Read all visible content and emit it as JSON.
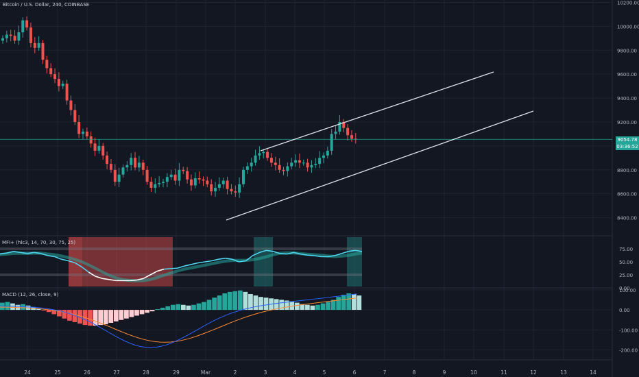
{
  "header": {
    "title": "Bitcoin / U.S. Dollar, 240, COINBASE"
  },
  "price_tag": {
    "price": "9054.78",
    "countdown": "03:36:52"
  },
  "mfi_label": "MFI+ (hlc3, 14, 70, 30, 75, 25)",
  "macd_label": "MACD (12, 26, close, 9)",
  "colors": {
    "background": "#131722",
    "up": "#26a69a",
    "down": "#ef5350",
    "grid": "#1e2330",
    "mfi_line": "#4fd6f0",
    "macd_line": "#2962ff",
    "signal_line": "#ff8a33"
  },
  "chart_data": [
    {
      "type": "candlestick",
      "title": "Bitcoin / U.S. Dollar, 240, COINBASE",
      "y_ticks": [
        "10200.00",
        "10000.00",
        "9800.00",
        "9600.00",
        "9400.00",
        "9200.00",
        "9000.00",
        "8800.00",
        "8600.00",
        "8400.00"
      ],
      "ylim": [
        8260,
        10220
      ],
      "x_ticks": [
        "24",
        "25",
        "26",
        "27",
        "28",
        "29",
        "Mar",
        "2",
        "3",
        "4",
        "5",
        "6",
        "7",
        "8",
        "9",
        "10",
        "11",
        "12",
        "13",
        "14"
      ],
      "current_price": 9054.78,
      "close_approx": [
        9900,
        9930,
        9920,
        9880,
        9950,
        10050,
        9990,
        9860,
        9820,
        9860,
        9720,
        9650,
        9600,
        9560,
        9500,
        9520,
        9380,
        9300,
        9200,
        9100,
        9120,
        9080,
        9020,
        8960,
        9000,
        8920,
        8850,
        8800,
        8700,
        8760,
        8820,
        8840,
        8900,
        8820,
        8860,
        8800,
        8700,
        8650,
        8680,
        8690,
        8700,
        8740,
        8760,
        8710,
        8800,
        8790,
        8720,
        8670,
        8730,
        8720,
        8710,
        8680,
        8620,
        8650,
        8680,
        8710,
        8640,
        8620,
        8610,
        8680,
        8800,
        8830,
        8860,
        8920,
        8940,
        8950,
        8900,
        8860,
        8840,
        8800,
        8790,
        8830,
        8860,
        8880,
        8860,
        8860,
        8820,
        8840,
        8850,
        8900,
        8920,
        8960,
        9100,
        9120,
        9200,
        9150,
        9090,
        9060,
        9055
      ]
    },
    {
      "type": "line",
      "name": "MFI+ (hlc3, 14, 70, 30, 75, 25)",
      "y_ticks": [
        "75.00",
        "50.00",
        "25.00",
        "0.00"
      ],
      "ylim": [
        0,
        100
      ],
      "upper_band": 75,
      "lower_band": 25,
      "mfi_values": [
        65,
        67,
        70,
        68,
        66,
        68,
        66,
        62,
        60,
        55,
        52,
        48,
        40,
        30,
        22,
        18,
        16,
        14,
        14,
        14,
        15,
        18,
        25,
        32,
        36,
        37,
        38,
        42,
        45,
        48,
        50,
        52,
        55,
        57,
        55,
        50,
        52,
        62,
        68,
        72,
        70,
        66,
        65,
        68,
        65,
        63,
        62,
        60,
        60,
        62,
        66,
        70,
        72,
        70
      ]
    },
    {
      "type": "bar",
      "name": "MACD (12, 26, close, 9)",
      "y_ticks": [
        "100.00",
        "0.00",
        "-100.00",
        "-200.00"
      ],
      "ylim": [
        -250,
        110
      ],
      "histogram": [
        20,
        22,
        18,
        14,
        16,
        12,
        8,
        4,
        -2,
        -6,
        -12,
        -18,
        -24,
        -30,
        -34,
        -38,
        -42,
        -44,
        -44,
        -42,
        -40,
        -36,
        -32,
        -28,
        -24,
        -20,
        -16,
        -12,
        -8,
        -4,
        2,
        6,
        10,
        14,
        16,
        14,
        12,
        14,
        18,
        22,
        28,
        34,
        40,
        46,
        50,
        52,
        54,
        50,
        44,
        40,
        36,
        34,
        32,
        30,
        28,
        26,
        24,
        20,
        16,
        14,
        12,
        14,
        18,
        22,
        28,
        36,
        42,
        46,
        44,
        40
      ]
    }
  ]
}
